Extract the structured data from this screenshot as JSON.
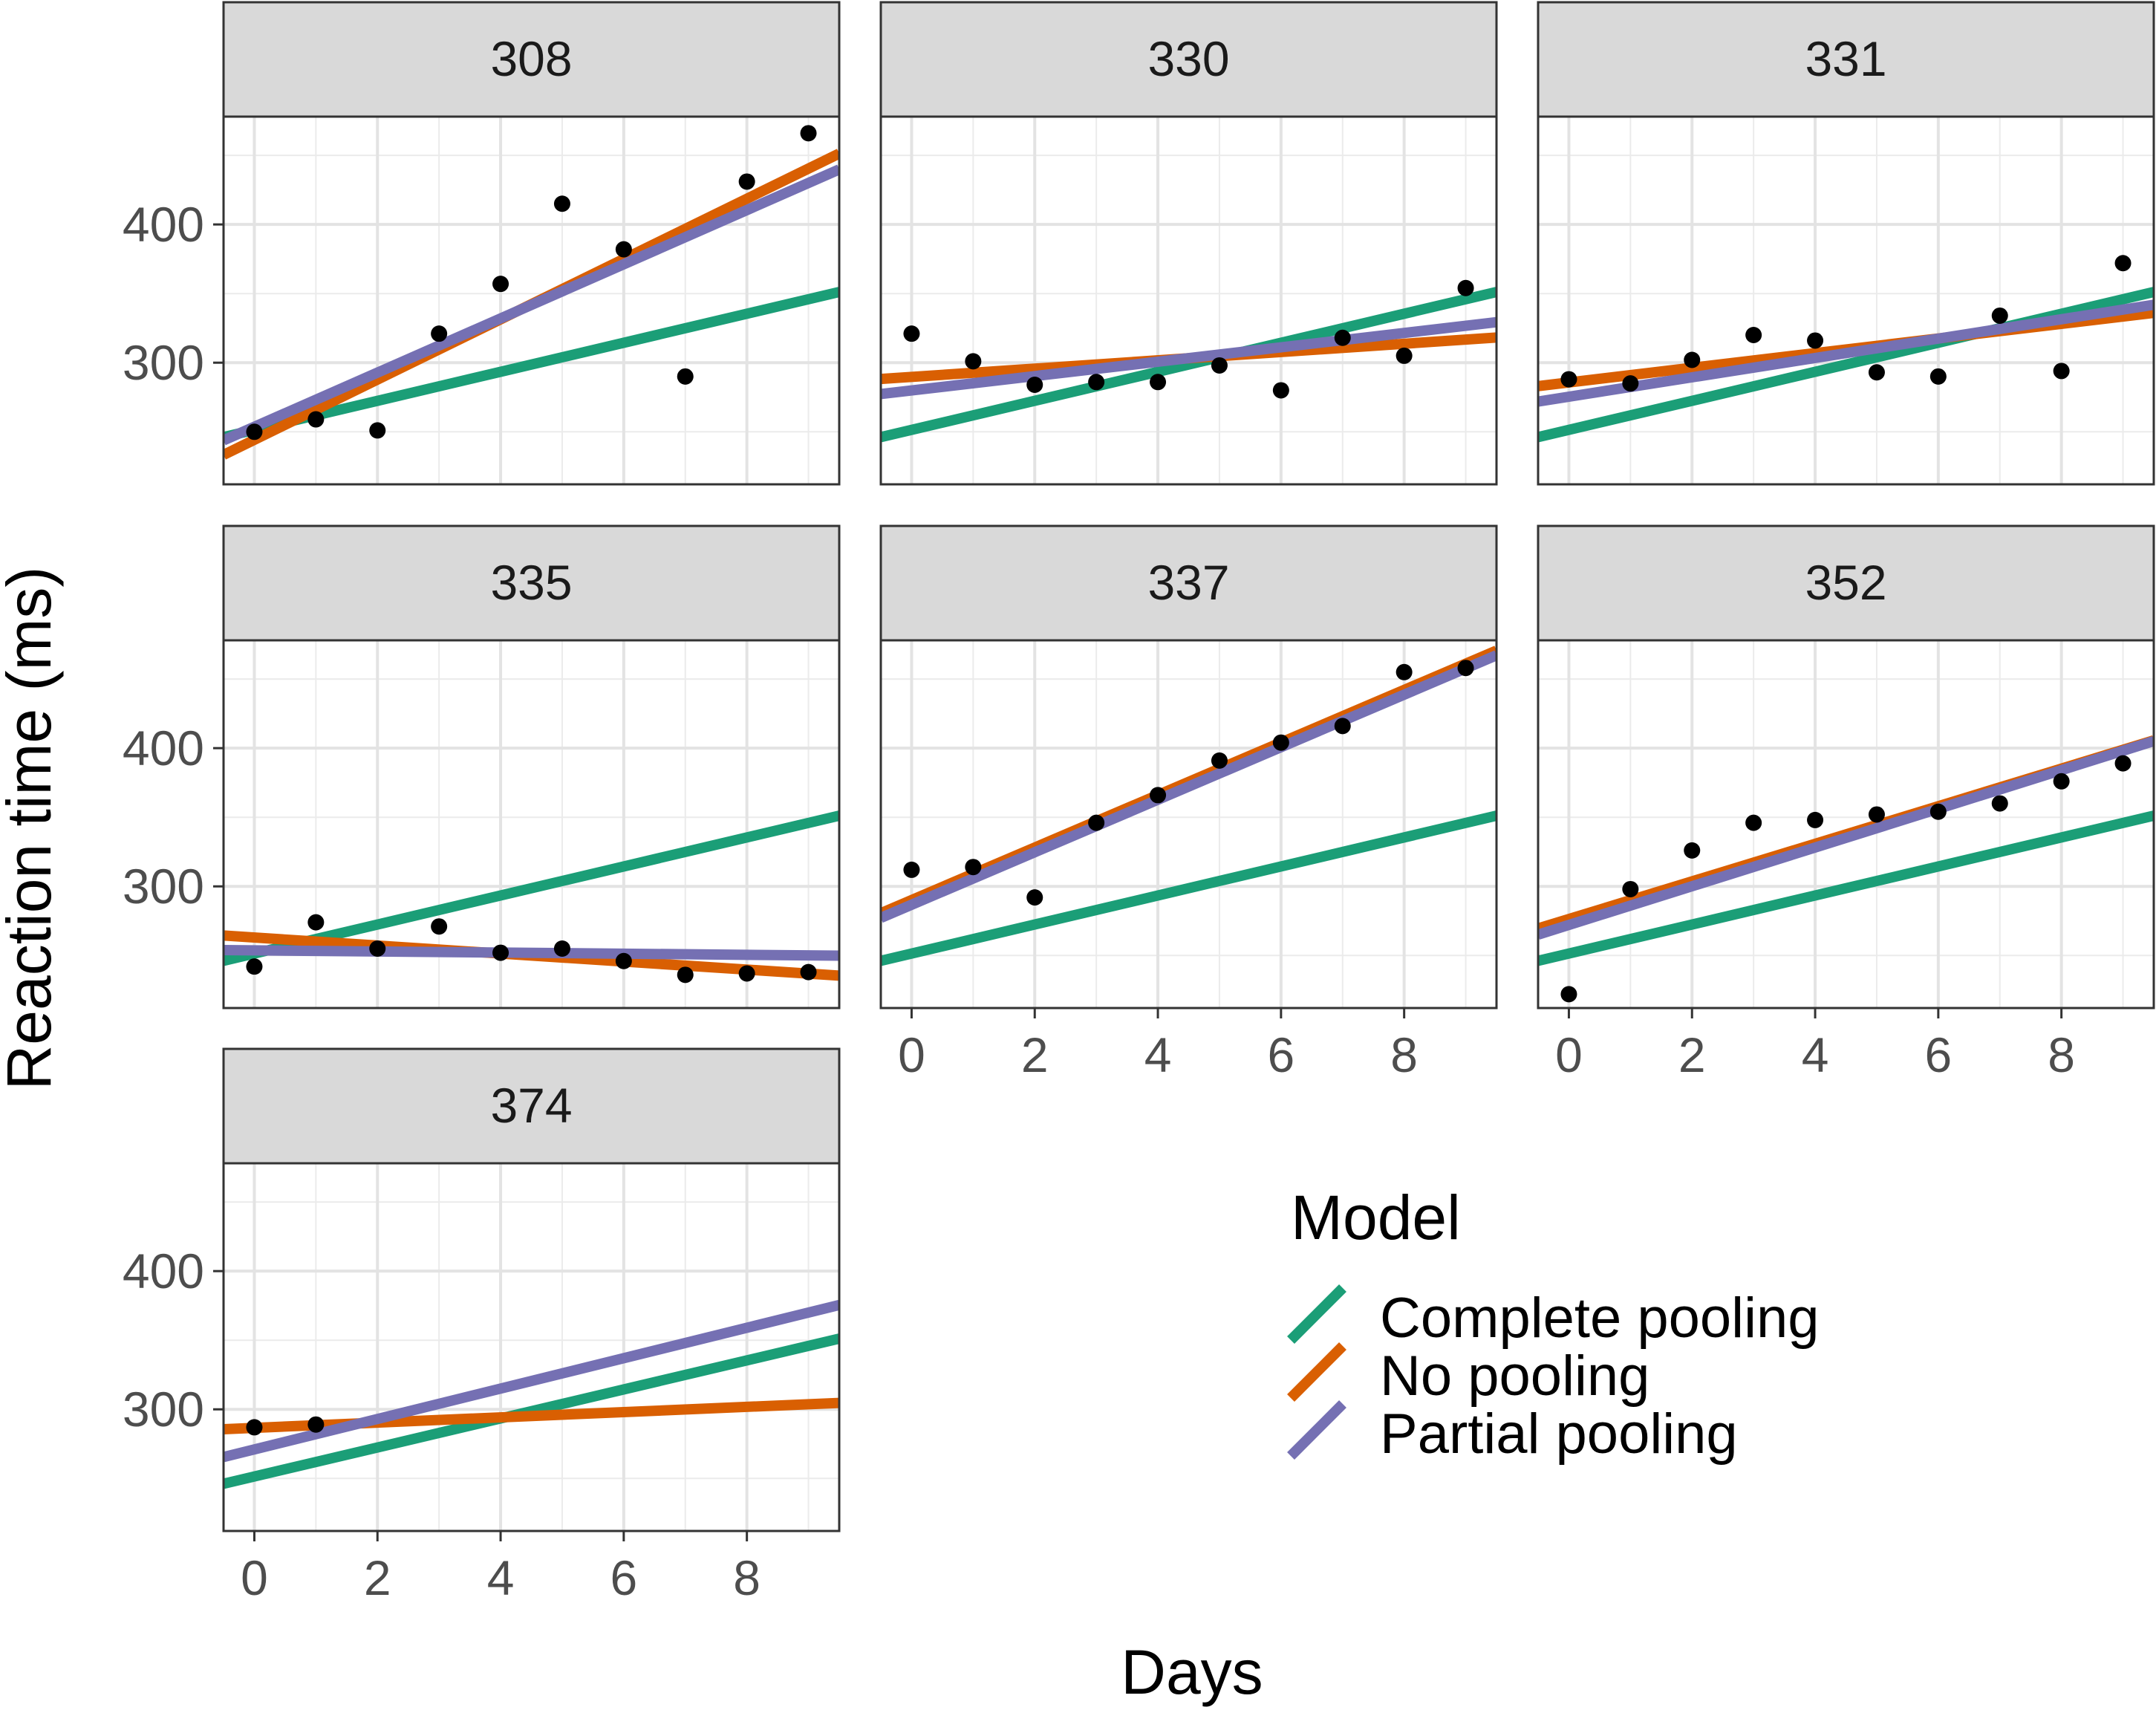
{
  "chart_data": {
    "type": "line",
    "xlabel": "Days",
    "ylabel": "Reaction time (ms)",
    "xlim": [
      -0.5,
      9.5
    ],
    "ylim": [
      212,
      478
    ],
    "x_ticks": [
      0,
      2,
      4,
      6,
      8
    ],
    "y_ticks": [
      300,
      400
    ],
    "grid": true,
    "legend": {
      "title": "Model",
      "position": "bottom-right",
      "entries": [
        {
          "name": "Complete pooling",
          "color": "#1b9e77"
        },
        {
          "name": "No pooling",
          "color": "#d95f02"
        },
        {
          "name": "Partial pooling",
          "color": "#7570b3"
        }
      ]
    },
    "panels": [
      {
        "label": "308",
        "points": [
          [
            0,
            250
          ],
          [
            1,
            259
          ],
          [
            2,
            251
          ],
          [
            3,
            321
          ],
          [
            4,
            357
          ],
          [
            5,
            415
          ],
          [
            6,
            382
          ],
          [
            7,
            290
          ],
          [
            8,
            431
          ],
          [
            9,
            466
          ]
        ],
        "lines": {
          "Complete pooling": [
            251.4,
            10.5
          ],
          "No pooling": [
            244.2,
            21.8
          ],
          "Partial pooling": [
            253.6,
            19.6
          ]
        }
      },
      {
        "label": "330",
        "points": [
          [
            0,
            321
          ],
          [
            1,
            301
          ],
          [
            2,
            284
          ],
          [
            3,
            286
          ],
          [
            4,
            286
          ],
          [
            5,
            298
          ],
          [
            6,
            280
          ],
          [
            7,
            318
          ],
          [
            8,
            305
          ],
          [
            9,
            354
          ]
        ],
        "lines": {
          "Complete pooling": [
            251.4,
            10.5
          ],
          "No pooling": [
            289.7,
            3.0
          ],
          "Partial pooling": [
            279.9,
            5.2
          ]
        }
      },
      {
        "label": "331",
        "points": [
          [
            0,
            288
          ],
          [
            1,
            285
          ],
          [
            2,
            302
          ],
          [
            3,
            320
          ],
          [
            4,
            316
          ],
          [
            5,
            293
          ],
          [
            6,
            290
          ],
          [
            7,
            334
          ],
          [
            8,
            294
          ],
          [
            9,
            372
          ]
        ],
        "lines": {
          "Complete pooling": [
            251.4,
            10.5
          ],
          "No pooling": [
            285.7,
            5.3
          ],
          "Partial pooling": [
            275.4,
            7.0
          ]
        }
      },
      {
        "label": "335",
        "points": [
          [
            0,
            242
          ],
          [
            1,
            274
          ],
          [
            2,
            255
          ],
          [
            3,
            271
          ],
          [
            4,
            252
          ],
          [
            5,
            255
          ],
          [
            6,
            246
          ],
          [
            7,
            236
          ],
          [
            8,
            237
          ],
          [
            9,
            238
          ]
        ],
        "lines": {
          "Complete pooling": [
            251.4,
            10.5
          ],
          "No pooling": [
            263.0,
            -2.9
          ],
          "Partial pooling": [
            253.7,
            -0.4
          ]
        }
      },
      {
        "label": "337",
        "points": [
          [
            0,
            312
          ],
          [
            1,
            314
          ],
          [
            2,
            292
          ],
          [
            3,
            346
          ],
          [
            4,
            366
          ],
          [
            5,
            391
          ],
          [
            6,
            404
          ],
          [
            7,
            416
          ],
          [
            8,
            455
          ],
          [
            9,
            458
          ]
        ],
        "lines": {
          "Complete pooling": [
            251.4,
            10.5
          ],
          "No pooling": [
            290.1,
            19.0
          ],
          "Partial pooling": [
            286.7,
            19.0
          ]
        }
      },
      {
        "label": "352",
        "points": [
          [
            0,
            222
          ],
          [
            1,
            298
          ],
          [
            2,
            326
          ],
          [
            3,
            346
          ],
          [
            4,
            348
          ],
          [
            5,
            352
          ],
          [
            6,
            354
          ],
          [
            7,
            360
          ],
          [
            8,
            376
          ],
          [
            9,
            389
          ]
        ],
        "lines": {
          "Complete pooling": [
            251.4,
            10.5
          ],
          "No pooling": [
            276.4,
            13.6
          ],
          "Partial pooling": [
            272.1,
            14.0
          ]
        }
      },
      {
        "label": "374",
        "points": [
          [
            0,
            287
          ],
          [
            1,
            289
          ]
        ],
        "lines": {
          "Complete pooling": [
            251.4,
            10.5
          ],
          "No pooling": [
            286.6,
            1.9
          ],
          "Partial pooling": [
            271.0,
            11.0
          ]
        }
      }
    ]
  }
}
